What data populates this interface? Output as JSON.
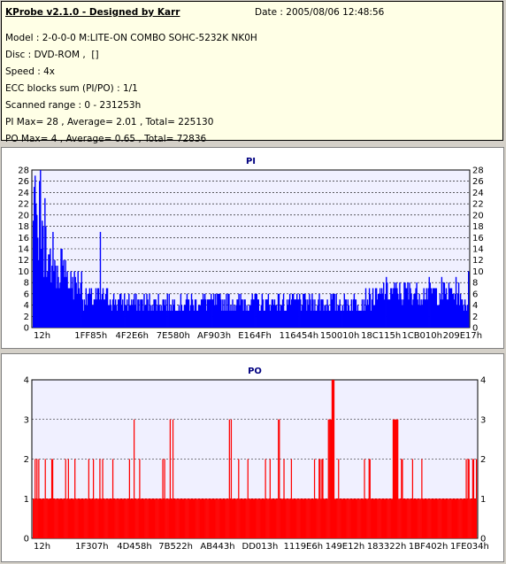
{
  "info": {
    "title": "KProbe v2.1.0 - Designed by Karr",
    "date": "Date : 2005/08/06 12:48:56",
    "lines": [
      "Model : 2-0-0-0 M:LITE-ON COMBO SOHC-5232K NK0H",
      "Disc : DVD-ROM ,  []",
      "Speed : 4x",
      "ECC blocks sum (PI/PO) : 1/1",
      "Scanned range : 0 - 231253h",
      "PI Max= 28 , Average= 2.01 , Total= 225130",
      "PO Max= 4 , Average= 0.65 , Total= 72836"
    ]
  },
  "chart_data": [
    {
      "type": "bar",
      "title": "PI",
      "color": "#0000ff",
      "ylim": [
        0,
        28
      ],
      "yticks": [
        0,
        2,
        4,
        6,
        8,
        10,
        12,
        14,
        16,
        18,
        20,
        22,
        24,
        26,
        28
      ],
      "xlim": [
        0,
        2364
      ],
      "xticks": [
        "12h",
        "1FF85h",
        "4F2E6h",
        "7E580h",
        "AF903h",
        "E164Fh",
        "116454h",
        "150010h",
        "18C115h",
        "1CB010h",
        "209E17h"
      ],
      "max": 28,
      "average": 2.01,
      "total": 225130,
      "series": [
        {
          "from": 0,
          "to": 8,
          "level": 20
        },
        {
          "from": 8,
          "to": 18,
          "level": 16
        },
        {
          "from": 18,
          "to": 38,
          "level": 12
        },
        {
          "from": 38,
          "to": 55,
          "level": 9
        },
        {
          "from": 55,
          "to": 88,
          "level": 6
        },
        {
          "from": 88,
          "to": 370,
          "level": 5
        },
        {
          "from": 370,
          "to": 390,
          "level": 6
        },
        {
          "from": 390,
          "to": 478,
          "level": 7
        },
        {
          "from": 478,
          "to": 488,
          "level": 5
        }
      ]
    },
    {
      "type": "bar",
      "title": "PO",
      "color": "#ff0000",
      "ylim": [
        0,
        4
      ],
      "yticks": [
        0,
        1,
        2,
        3,
        4
      ],
      "xticks": [
        "12h",
        "1F307h",
        "4D458h",
        "7B522h",
        "AB443h",
        "DD013h",
        "1119E6h",
        "149E12h",
        "183322h",
        "1BF402h",
        "1FE034h"
      ],
      "max": 4,
      "average": 0.65,
      "total": 72836,
      "baseline": 1,
      "spikes2": [
        2,
        4,
        6,
        13,
        20,
        21,
        35,
        38,
        45,
        60,
        65,
        72,
        75,
        86,
        104,
        115,
        140,
        142,
        222,
        232,
        251,
        256,
        271,
        279,
        304,
        309,
        310,
        312,
        313,
        319,
        320,
        322,
        330,
        358,
        363,
        364,
        392,
        398,
        399,
        410,
        420,
        468,
        470,
        471,
        475,
        476,
        479
      ],
      "spikes3": [
        109,
        148,
        151,
        212,
        214,
        265,
        266,
        319,
        320,
        321,
        322,
        323,
        389,
        390,
        391,
        392,
        393,
        394
      ],
      "spikes4": [
        323,
        324,
        325
      ]
    }
  ]
}
